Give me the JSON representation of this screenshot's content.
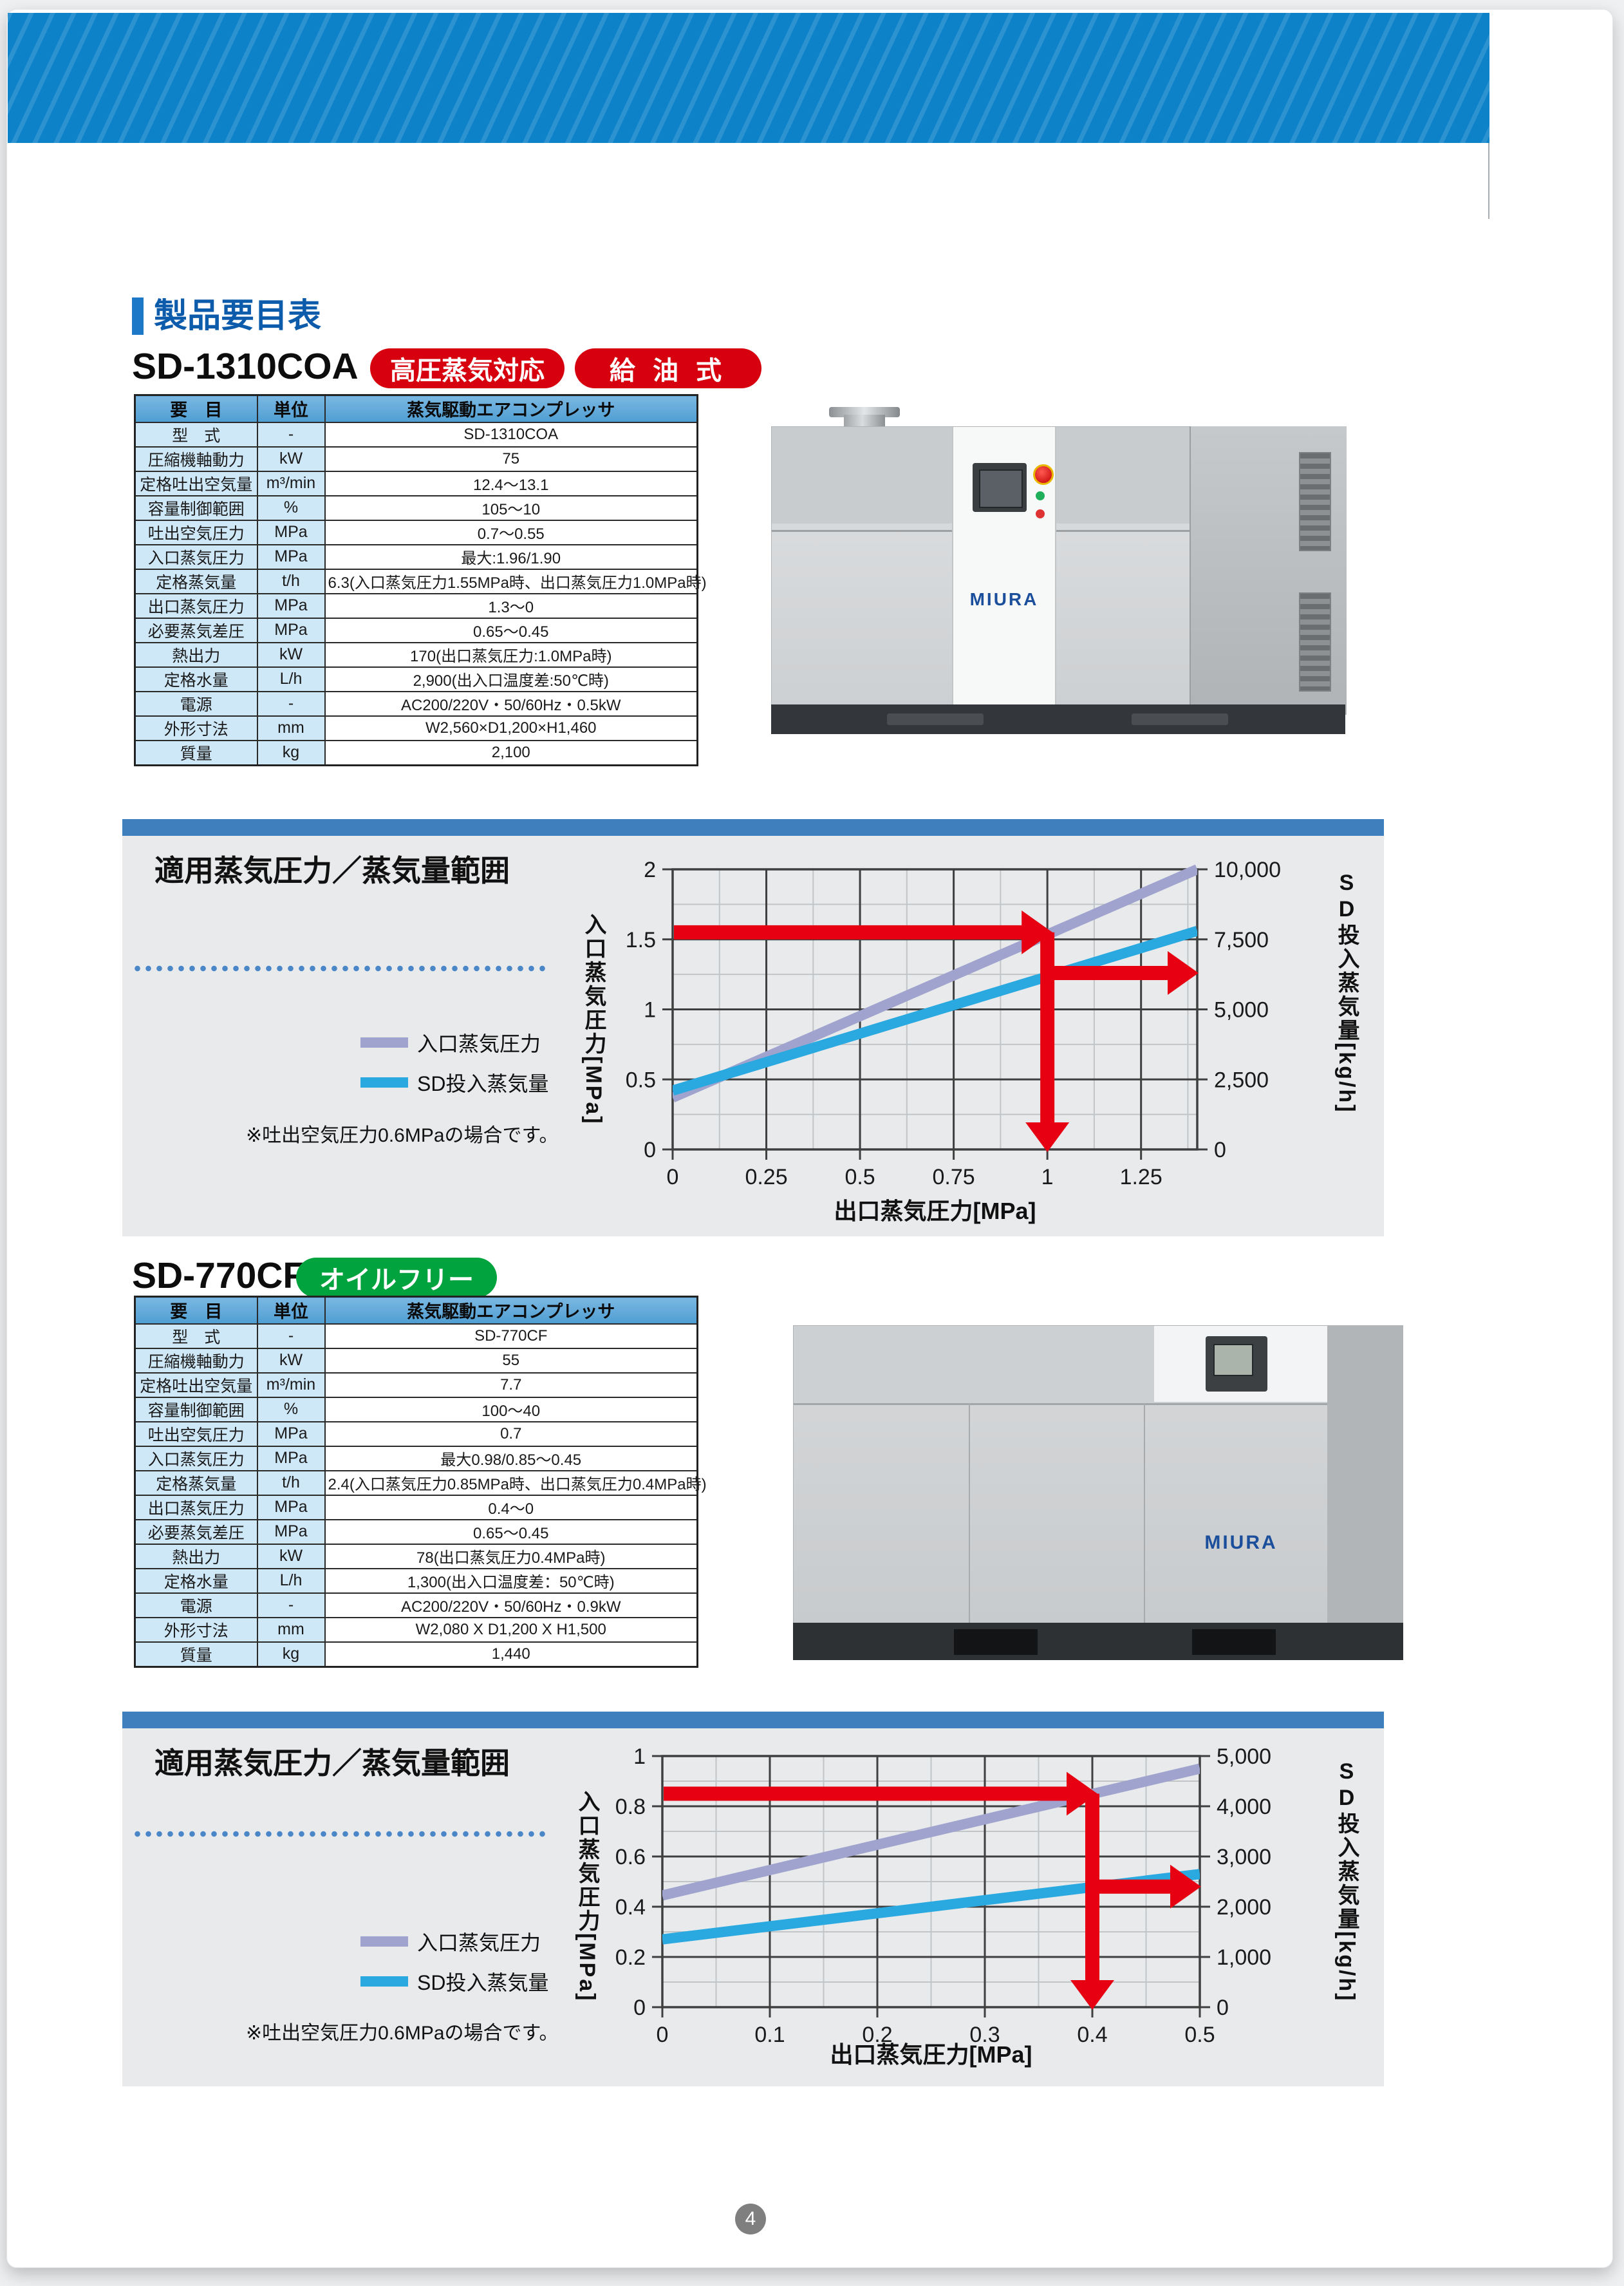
{
  "page": {
    "number": "4"
  },
  "doc_header": {
    "section_title": "製品要目表"
  },
  "products": [
    {
      "model": "SD-1310COA",
      "badges": [
        "高圧蒸気対応",
        "給 油 式"
      ],
      "badge_color": "#d7000f",
      "brand": "MIURA",
      "table": {
        "headers": [
          "要　目",
          "単位",
          "蒸気駆動エアコンプレッサ"
        ],
        "rows": [
          [
            "型　式",
            "-",
            "SD-1310COA"
          ],
          [
            "圧縮機軸動力",
            "kW",
            "75"
          ],
          [
            "定格吐出空気量",
            "m³/min",
            "12.4〜13.1"
          ],
          [
            "容量制御範囲",
            "%",
            "105〜10"
          ],
          [
            "吐出空気圧力",
            "MPa",
            "0.7〜0.55"
          ],
          [
            "入口蒸気圧力",
            "MPa",
            "最大:1.96/1.90"
          ],
          [
            "定格蒸気量",
            "t/h",
            "6.3(入口蒸気圧力1.55MPa時、出口蒸気圧力1.0MPa時)"
          ],
          [
            "出口蒸気圧力",
            "MPa",
            "1.3〜0"
          ],
          [
            "必要蒸気差圧",
            "MPa",
            "0.65〜0.45"
          ],
          [
            "熱出力",
            "kW",
            "170(出口蒸気圧力:1.0MPa時)"
          ],
          [
            "定格水量",
            "L/h",
            "2,900(出入口温度差:50℃時)"
          ],
          [
            "電源",
            "-",
            "AC200/220V・50/60Hz・0.5kW"
          ],
          [
            "外形寸法",
            "mm",
            "W2,560×D1,200×H1,460"
          ],
          [
            "質量",
            "kg",
            "2,100"
          ]
        ]
      }
    },
    {
      "model": "SD-770CF",
      "badges": [
        "オイルフリー"
      ],
      "badge_color": "#00a33e",
      "brand": "MIURA",
      "table": {
        "headers": [
          "要　目",
          "単位",
          "蒸気駆動エアコンプレッサ"
        ],
        "rows": [
          [
            "型　式",
            "-",
            "SD-770CF"
          ],
          [
            "圧縮機軸動力",
            "kW",
            "55"
          ],
          [
            "定格吐出空気量",
            "m³/min",
            "7.7"
          ],
          [
            "容量制御範囲",
            "%",
            "100〜40"
          ],
          [
            "吐出空気圧力",
            "MPa",
            "0.7"
          ],
          [
            "入口蒸気圧力",
            "MPa",
            "最大0.98/0.85〜0.45"
          ],
          [
            "定格蒸気量",
            "t/h",
            "2.4(入口蒸気圧力0.85MPa時、出口蒸気圧力0.4MPa時)"
          ],
          [
            "出口蒸気圧力",
            "MPa",
            "0.4〜0"
          ],
          [
            "必要蒸気差圧",
            "MPa",
            "0.65〜0.45"
          ],
          [
            "熱出力",
            "kW",
            "78(出口蒸気圧力0.4MPa時)"
          ],
          [
            "定格水量",
            "L/h",
            "1,300(出入口温度差：50℃時)"
          ],
          [
            "電源",
            "-",
            "AC200/220V・50/60Hz・0.9kW"
          ],
          [
            "外形寸法",
            "mm",
            "W2,080 X D1,200 X H1,500"
          ],
          [
            "質量",
            "kg",
            "1,440"
          ]
        ]
      }
    }
  ],
  "sections": [
    {
      "title": "適用蒸気圧力／蒸気量範囲",
      "legend": [
        {
          "label": "入口蒸気圧力",
          "color": "#9fa3cd"
        },
        {
          "label": "SD投入蒸気量",
          "color": "#29a9e0"
        }
      ],
      "note": "※吐出空気圧力0.6MPaの場合です。"
    },
    {
      "title": "適用蒸気圧力／蒸気量範囲",
      "legend": [
        {
          "label": "入口蒸気圧力",
          "color": "#9fa3cd"
        },
        {
          "label": "SD投入蒸気量",
          "color": "#29a9e0"
        }
      ],
      "note": "※吐出空気圧力0.6MPaの場合です。"
    }
  ],
  "chart_data": [
    {
      "type": "line",
      "title": "適用蒸気圧力／蒸気量範囲 (SD-1310COA)",
      "xlabel": "出口蒸気圧力[MPa]",
      "ylabel_left": "入口蒸気圧力[MPa]",
      "ylabel_right": "SD投入蒸気量[kg/h]",
      "ylabel_right_parts": [
        "SD投入蒸気量",
        "[kg/h]"
      ],
      "xlim": [
        0,
        1.4
      ],
      "x_major_step": 0.25,
      "x_minor_step": 0.125,
      "xticks": [
        {
          "v": 0,
          "label": "0"
        },
        {
          "v": 0.25,
          "label": "0.25"
        },
        {
          "v": 0.5,
          "label": "0.5"
        },
        {
          "v": 0.75,
          "label": "0.75"
        },
        {
          "v": 1,
          "label": "1"
        },
        {
          "v": 1.25,
          "label": "1.25"
        }
      ],
      "ylim_left": [
        0,
        2
      ],
      "y_major_step": 0.5,
      "y_minor_step": 0.25,
      "yticks_left": [
        {
          "v": 0,
          "label": "0"
        },
        {
          "v": 0.5,
          "label": "0.5"
        },
        {
          "v": 1,
          "label": "1"
        },
        {
          "v": 1.5,
          "label": "1.5"
        },
        {
          "v": 2,
          "label": "2"
        }
      ],
      "ylim_right": [
        0,
        10000
      ],
      "yticks_right": [
        {
          "v": 0,
          "label": "0"
        },
        {
          "v": 2500,
          "label": "2,500"
        },
        {
          "v": 5000,
          "label": "5,000"
        },
        {
          "v": 7500,
          "label": "7,500"
        },
        {
          "v": 10000,
          "label": "10,000"
        }
      ],
      "series": [
        {
          "name": "入口蒸気圧力",
          "axis": "left",
          "color": "#9fa3cd",
          "points": [
            [
              0,
              0.37
            ],
            [
              1.4,
              2.0
            ]
          ]
        },
        {
          "name": "SD投入蒸気量",
          "axis": "right",
          "color": "#29a9e0",
          "points": [
            [
              0,
              2100
            ],
            [
              1.4,
              7800
            ]
          ]
        }
      ],
      "guide_arrows": {
        "color": "#e60012",
        "inlet_pressure": 1.55,
        "outlet_pressure": 1.0,
        "steam_flow": 6300
      },
      "grid": true,
      "legend_position": "left"
    },
    {
      "type": "line",
      "title": "適用蒸気圧力／蒸気量範囲 (SD-770CF)",
      "xlabel": "出口蒸気圧力[MPa]",
      "ylabel_left": "入口蒸気圧力[MPa]",
      "ylabel_right": "SD投入蒸気量[kg/h]",
      "ylabel_right_parts": [
        "SD投入蒸気量",
        "[kg/h]"
      ],
      "xlim": [
        0,
        0.5
      ],
      "x_major_step": 0.1,
      "x_minor_step": 0.05,
      "xticks": [
        {
          "v": 0,
          "label": "0"
        },
        {
          "v": 0.1,
          "label": "0.1"
        },
        {
          "v": 0.2,
          "label": "0.2"
        },
        {
          "v": 0.3,
          "label": "0.3"
        },
        {
          "v": 0.4,
          "label": "0.4"
        },
        {
          "v": 0.5,
          "label": "0.5"
        }
      ],
      "ylim_left": [
        0,
        1
      ],
      "y_major_step": 0.2,
      "y_minor_step": 0.1,
      "yticks_left": [
        {
          "v": 0,
          "label": "0"
        },
        {
          "v": 0.2,
          "label": "0.2"
        },
        {
          "v": 0.4,
          "label": "0.4"
        },
        {
          "v": 0.6,
          "label": "0.6"
        },
        {
          "v": 0.8,
          "label": "0.8"
        },
        {
          "v": 1,
          "label": "1"
        }
      ],
      "ylim_right": [
        0,
        5000
      ],
      "yticks_right": [
        {
          "v": 0,
          "label": "0"
        },
        {
          "v": 1000,
          "label": "1,000"
        },
        {
          "v": 2000,
          "label": "2,000"
        },
        {
          "v": 3000,
          "label": "3,000"
        },
        {
          "v": 4000,
          "label": "4,000"
        },
        {
          "v": 5000,
          "label": "5,000"
        }
      ],
      "series": [
        {
          "name": "入口蒸気圧力",
          "axis": "left",
          "color": "#9fa3cd",
          "points": [
            [
              0,
              0.445
            ],
            [
              0.5,
              0.95
            ]
          ]
        },
        {
          "name": "SD投入蒸気量",
          "axis": "right",
          "color": "#29a9e0",
          "points": [
            [
              0,
              1350
            ],
            [
              0.5,
              2650
            ]
          ]
        }
      ],
      "guide_arrows": {
        "color": "#e60012",
        "inlet_pressure": 0.85,
        "outlet_pressure": 0.4,
        "steam_flow": 2400
      },
      "grid": true,
      "legend_position": "left"
    }
  ]
}
